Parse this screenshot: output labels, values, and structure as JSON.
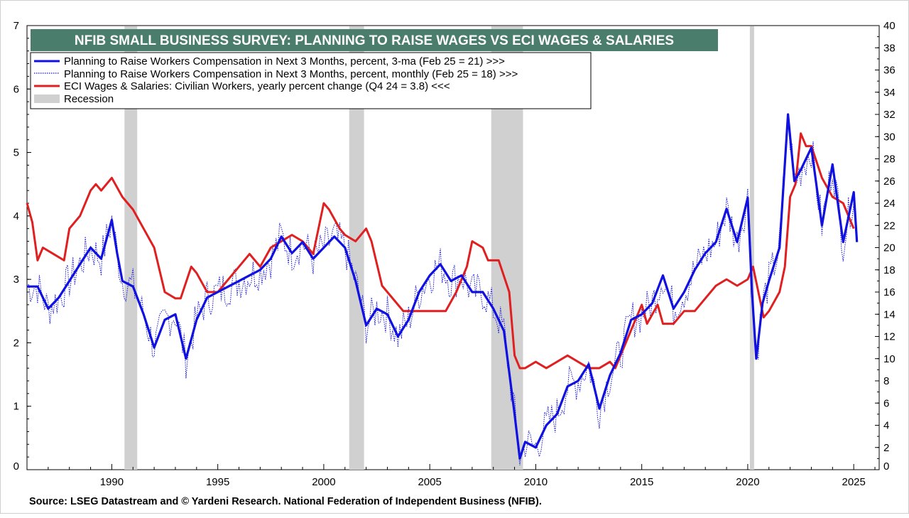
{
  "chart_data": {
    "type": "line",
    "title": "NFIB SMALL BUSINESS SURVEY: PLANNING TO RAISE WAGES VS ECI WAGES & SALARIES",
    "source": "Source: LSEG Datastream and © Yardeni Research. National Federation of Independent Business (NFIB).",
    "x_axis": {
      "range": [
        1986.0,
        2026.2
      ],
      "tick_labels": [
        "1990",
        "1995",
        "2000",
        "2005",
        "2010",
        "2015",
        "2020",
        "2025"
      ]
    },
    "y_left": {
      "range": [
        0,
        7
      ],
      "tick_labels": [
        "0",
        "1",
        "2",
        "3",
        "4",
        "5",
        "6",
        "7"
      ]
    },
    "y_right": {
      "range": [
        0,
        40
      ],
      "tick_labels": [
        "0",
        "2",
        "4",
        "6",
        "8",
        "10",
        "12",
        "14",
        "16",
        "18",
        "20",
        "22",
        "24",
        "26",
        "28",
        "30",
        "32",
        "34",
        "36",
        "38",
        "40"
      ]
    },
    "legend": [
      {
        "label": "Planning to Raise Workers Compensation in  Next 3 Months, percent, 3-ma (Feb 25 = 21) >>>",
        "style": "blue-thick"
      },
      {
        "label": "Planning to Raise Workers Compensation in  Next 3 Months, percent, monthly (Feb 25 = 18) >>>",
        "style": "blue-dotted"
      },
      {
        "label": "ECI Wages & Salaries: Civilian Workers, yearly percent change (Q4 24 = 3.8) <<<",
        "style": "red"
      },
      {
        "label": "Recession",
        "style": "gray-box"
      }
    ],
    "recessions": [
      [
        1990.6,
        1991.2
      ],
      [
        2001.2,
        2001.9
      ],
      [
        2007.9,
        2009.4
      ],
      [
        2020.1,
        2020.3
      ]
    ],
    "colors": {
      "nfib": "#1010e0",
      "eci": "#e02020",
      "recession": "#d0d0d0",
      "title_bg": "#4a7d6b"
    },
    "series": [
      {
        "name": "Planning to Raise Workers Compensation, 3-ma",
        "axis": "right",
        "x": [
          1986.0,
          1986.5,
          1987.0,
          1987.5,
          1988.0,
          1988.5,
          1989.0,
          1989.5,
          1990.0,
          1990.25,
          1990.5,
          1991.0,
          1991.5,
          1992.0,
          1992.5,
          1993.0,
          1993.5,
          1994.0,
          1994.5,
          1995.0,
          1995.5,
          1996.0,
          1996.5,
          1997.0,
          1997.5,
          1998.0,
          1998.5,
          1999.0,
          1999.5,
          2000.0,
          2000.5,
          2001.0,
          2001.5,
          2002.0,
          2002.5,
          2003.0,
          2003.5,
          2004.0,
          2004.5,
          2005.0,
          2005.5,
          2006.0,
          2006.5,
          2007.0,
          2007.5,
          2008.0,
          2008.5,
          2009.0,
          2009.25,
          2009.5,
          2010.0,
          2010.5,
          2011.0,
          2011.5,
          2012.0,
          2012.5,
          2013.0,
          2013.5,
          2014.0,
          2014.5,
          2015.0,
          2015.5,
          2016.0,
          2016.5,
          2017.0,
          2017.5,
          2018.0,
          2018.5,
          2019.0,
          2019.5,
          2020.0,
          2020.2,
          2020.4,
          2020.7,
          2021.0,
          2021.5,
          2021.9,
          2022.2,
          2022.5,
          2023.0,
          2023.5,
          2024.0,
          2024.5,
          2025.0,
          2025.15
        ],
        "values": [
          16.5,
          16.5,
          14.5,
          15.5,
          17.0,
          18.5,
          20.0,
          19.0,
          22.5,
          19.5,
          17.0,
          16.5,
          14.0,
          11.0,
          13.5,
          14.0,
          10.0,
          13.5,
          15.5,
          16.0,
          16.5,
          17.0,
          17.5,
          18.0,
          19.0,
          21.0,
          19.5,
          20.5,
          19.0,
          20.0,
          21.0,
          20.0,
          17.0,
          13.0,
          14.5,
          14.0,
          12.0,
          13.5,
          16.0,
          17.5,
          18.5,
          17.0,
          17.5,
          16.0,
          16.0,
          14.5,
          12.5,
          5.0,
          1.0,
          2.5,
          2.0,
          4.0,
          5.0,
          7.5,
          8.0,
          9.5,
          5.5,
          8.5,
          10.5,
          13.5,
          14.0,
          15.0,
          17.5,
          14.5,
          16.0,
          18.0,
          19.5,
          20.5,
          23.5,
          20.5,
          24.5,
          16.0,
          10.0,
          15.0,
          17.0,
          20.0,
          32.0,
          26.0,
          27.0,
          29.0,
          22.0,
          27.5,
          20.5,
          25.0,
          20.5
        ]
      },
      {
        "name": "ECI Wages & Salaries: Civilian Workers",
        "axis": "left",
        "x": [
          1986.0,
          1986.25,
          1986.5,
          1986.75,
          1987.25,
          1987.75,
          1988.0,
          1988.5,
          1989.0,
          1989.25,
          1989.5,
          1990.0,
          1990.5,
          1991.0,
          1991.5,
          1992.0,
          1992.5,
          1993.0,
          1993.25,
          1993.75,
          1994.0,
          1994.5,
          1995.0,
          1995.5,
          1996.0,
          1996.5,
          1997.0,
          1997.5,
          1998.0,
          1998.5,
          1999.0,
          1999.5,
          2000.0,
          2000.25,
          2000.75,
          2001.0,
          2001.5,
          2002.0,
          2002.25,
          2002.75,
          2003.25,
          2003.75,
          2004.25,
          2004.75,
          2005.25,
          2005.75,
          2006.25,
          2006.75,
          2007.0,
          2007.5,
          2007.75,
          2008.25,
          2008.75,
          2009.0,
          2009.25,
          2009.5,
          2010.0,
          2010.5,
          2011.0,
          2011.5,
          2012.0,
          2012.5,
          2013.0,
          2013.5,
          2013.75,
          2014.0,
          2014.5,
          2015.0,
          2015.25,
          2015.75,
          2016.0,
          2016.5,
          2017.0,
          2017.5,
          2018.0,
          2018.5,
          2019.0,
          2019.5,
          2020.0,
          2020.25,
          2020.5,
          2020.75,
          2021.0,
          2021.5,
          2021.75,
          2022.0,
          2022.25,
          2022.5,
          2022.75,
          2023.0,
          2023.5,
          2024.0,
          2024.5,
          2025.0
        ],
        "values": [
          4.2,
          3.9,
          3.3,
          3.5,
          3.4,
          3.3,
          3.8,
          4.0,
          4.4,
          4.5,
          4.4,
          4.6,
          4.3,
          4.1,
          3.8,
          3.5,
          2.8,
          2.7,
          2.7,
          3.2,
          3.1,
          2.8,
          2.8,
          3.0,
          3.2,
          3.4,
          3.2,
          3.5,
          3.6,
          3.7,
          3.6,
          3.4,
          4.2,
          4.1,
          3.8,
          3.7,
          3.6,
          3.8,
          3.6,
          2.9,
          2.7,
          2.5,
          2.5,
          2.5,
          2.5,
          2.5,
          2.8,
          3.2,
          3.6,
          3.5,
          3.3,
          3.3,
          2.8,
          1.8,
          1.6,
          1.6,
          1.7,
          1.6,
          1.7,
          1.8,
          1.7,
          1.6,
          1.6,
          1.7,
          1.6,
          1.8,
          2.2,
          2.6,
          2.3,
          2.6,
          2.3,
          2.3,
          2.5,
          2.5,
          2.7,
          2.9,
          3.0,
          2.9,
          3.0,
          3.2,
          2.8,
          2.4,
          2.5,
          2.8,
          3.2,
          4.3,
          4.5,
          5.3,
          5.1,
          5.1,
          4.6,
          4.3,
          4.2,
          3.8
        ]
      }
    ]
  }
}
